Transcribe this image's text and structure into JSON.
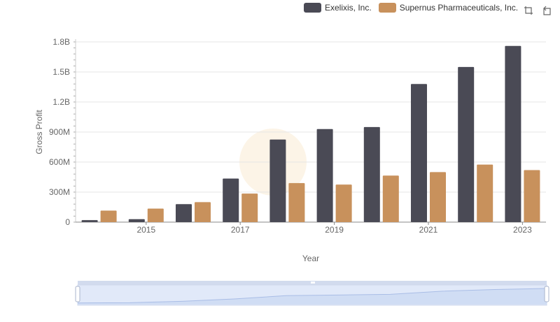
{
  "legend": {
    "items": [
      {
        "name": "Exelixis, Inc.",
        "color": "#4a4a55"
      },
      {
        "name": "Supernus Pharmaceuticals, Inc.",
        "color": "#c8915c"
      }
    ]
  },
  "toolbox": {
    "icons": [
      "zoom-icon",
      "zoom-reset-icon"
    ]
  },
  "chart_data": {
    "type": "bar",
    "xlabel": "Year",
    "ylabel": "Gross Profit",
    "categories": [
      "2014",
      "2015",
      "2016",
      "2017",
      "2018",
      "2019",
      "2020",
      "2021",
      "2022",
      "2023"
    ],
    "x_tick_labels": [
      "2015",
      "2017",
      "2019",
      "2021",
      "2023"
    ],
    "y_ticks": [
      0,
      300000000,
      600000000,
      900000000,
      1200000000,
      1500000000,
      1800000000
    ],
    "y_tick_labels": [
      "0",
      "300M",
      "600M",
      "900M",
      "1.2B",
      "1.5B",
      "1.8B"
    ],
    "ylim": [
      0,
      1800000000
    ],
    "grid": true,
    "legend_position": "top-right",
    "series": [
      {
        "name": "Exelixis, Inc.",
        "color": "#4a4a55",
        "values": [
          20000000,
          30000000,
          180000000,
          435000000,
          825000000,
          930000000,
          950000000,
          1380000000,
          1550000000,
          1760000000
        ]
      },
      {
        "name": "Supernus Pharmaceuticals, Inc.",
        "color": "#c8915c",
        "values": [
          115000000,
          135000000,
          200000000,
          285000000,
          390000000,
          375000000,
          465000000,
          500000000,
          575000000,
          520000000
        ]
      }
    ]
  }
}
